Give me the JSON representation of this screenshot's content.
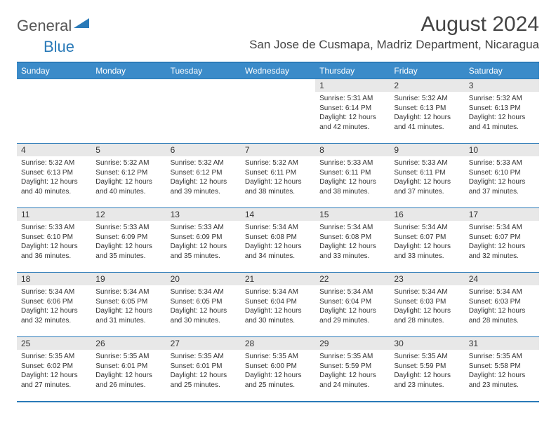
{
  "logo": {
    "general": "General",
    "blue": "Blue"
  },
  "title": "August 2024",
  "location": "San Jose de Cusmapa, Madriz Department, Nicaragua",
  "colors": {
    "header_bg": "#3b8bc9",
    "border": "#2a7ab8",
    "daynum_bg": "#e8e8e8",
    "text": "#333333",
    "logo_gray": "#555555",
    "logo_blue": "#2a7ab8"
  },
  "weekdays": [
    "Sunday",
    "Monday",
    "Tuesday",
    "Wednesday",
    "Thursday",
    "Friday",
    "Saturday"
  ],
  "weeks": [
    [
      null,
      null,
      null,
      null,
      {
        "n": "1",
        "sr": "5:31 AM",
        "ss": "6:14 PM",
        "dl": "12 hours and 42 minutes."
      },
      {
        "n": "2",
        "sr": "5:32 AM",
        "ss": "6:13 PM",
        "dl": "12 hours and 41 minutes."
      },
      {
        "n": "3",
        "sr": "5:32 AM",
        "ss": "6:13 PM",
        "dl": "12 hours and 41 minutes."
      }
    ],
    [
      {
        "n": "4",
        "sr": "5:32 AM",
        "ss": "6:13 PM",
        "dl": "12 hours and 40 minutes."
      },
      {
        "n": "5",
        "sr": "5:32 AM",
        "ss": "6:12 PM",
        "dl": "12 hours and 40 minutes."
      },
      {
        "n": "6",
        "sr": "5:32 AM",
        "ss": "6:12 PM",
        "dl": "12 hours and 39 minutes."
      },
      {
        "n": "7",
        "sr": "5:32 AM",
        "ss": "6:11 PM",
        "dl": "12 hours and 38 minutes."
      },
      {
        "n": "8",
        "sr": "5:33 AM",
        "ss": "6:11 PM",
        "dl": "12 hours and 38 minutes."
      },
      {
        "n": "9",
        "sr": "5:33 AM",
        "ss": "6:11 PM",
        "dl": "12 hours and 37 minutes."
      },
      {
        "n": "10",
        "sr": "5:33 AM",
        "ss": "6:10 PM",
        "dl": "12 hours and 37 minutes."
      }
    ],
    [
      {
        "n": "11",
        "sr": "5:33 AM",
        "ss": "6:10 PM",
        "dl": "12 hours and 36 minutes."
      },
      {
        "n": "12",
        "sr": "5:33 AM",
        "ss": "6:09 PM",
        "dl": "12 hours and 35 minutes."
      },
      {
        "n": "13",
        "sr": "5:33 AM",
        "ss": "6:09 PM",
        "dl": "12 hours and 35 minutes."
      },
      {
        "n": "14",
        "sr": "5:34 AM",
        "ss": "6:08 PM",
        "dl": "12 hours and 34 minutes."
      },
      {
        "n": "15",
        "sr": "5:34 AM",
        "ss": "6:08 PM",
        "dl": "12 hours and 33 minutes."
      },
      {
        "n": "16",
        "sr": "5:34 AM",
        "ss": "6:07 PM",
        "dl": "12 hours and 33 minutes."
      },
      {
        "n": "17",
        "sr": "5:34 AM",
        "ss": "6:07 PM",
        "dl": "12 hours and 32 minutes."
      }
    ],
    [
      {
        "n": "18",
        "sr": "5:34 AM",
        "ss": "6:06 PM",
        "dl": "12 hours and 32 minutes."
      },
      {
        "n": "19",
        "sr": "5:34 AM",
        "ss": "6:05 PM",
        "dl": "12 hours and 31 minutes."
      },
      {
        "n": "20",
        "sr": "5:34 AM",
        "ss": "6:05 PM",
        "dl": "12 hours and 30 minutes."
      },
      {
        "n": "21",
        "sr": "5:34 AM",
        "ss": "6:04 PM",
        "dl": "12 hours and 30 minutes."
      },
      {
        "n": "22",
        "sr": "5:34 AM",
        "ss": "6:04 PM",
        "dl": "12 hours and 29 minutes."
      },
      {
        "n": "23",
        "sr": "5:34 AM",
        "ss": "6:03 PM",
        "dl": "12 hours and 28 minutes."
      },
      {
        "n": "24",
        "sr": "5:34 AM",
        "ss": "6:03 PM",
        "dl": "12 hours and 28 minutes."
      }
    ],
    [
      {
        "n": "25",
        "sr": "5:35 AM",
        "ss": "6:02 PM",
        "dl": "12 hours and 27 minutes."
      },
      {
        "n": "26",
        "sr": "5:35 AM",
        "ss": "6:01 PM",
        "dl": "12 hours and 26 minutes."
      },
      {
        "n": "27",
        "sr": "5:35 AM",
        "ss": "6:01 PM",
        "dl": "12 hours and 25 minutes."
      },
      {
        "n": "28",
        "sr": "5:35 AM",
        "ss": "6:00 PM",
        "dl": "12 hours and 25 minutes."
      },
      {
        "n": "29",
        "sr": "5:35 AM",
        "ss": "5:59 PM",
        "dl": "12 hours and 24 minutes."
      },
      {
        "n": "30",
        "sr": "5:35 AM",
        "ss": "5:59 PM",
        "dl": "12 hours and 23 minutes."
      },
      {
        "n": "31",
        "sr": "5:35 AM",
        "ss": "5:58 PM",
        "dl": "12 hours and 23 minutes."
      }
    ]
  ],
  "labels": {
    "sunrise": "Sunrise:",
    "sunset": "Sunset:",
    "daylight": "Daylight:"
  }
}
